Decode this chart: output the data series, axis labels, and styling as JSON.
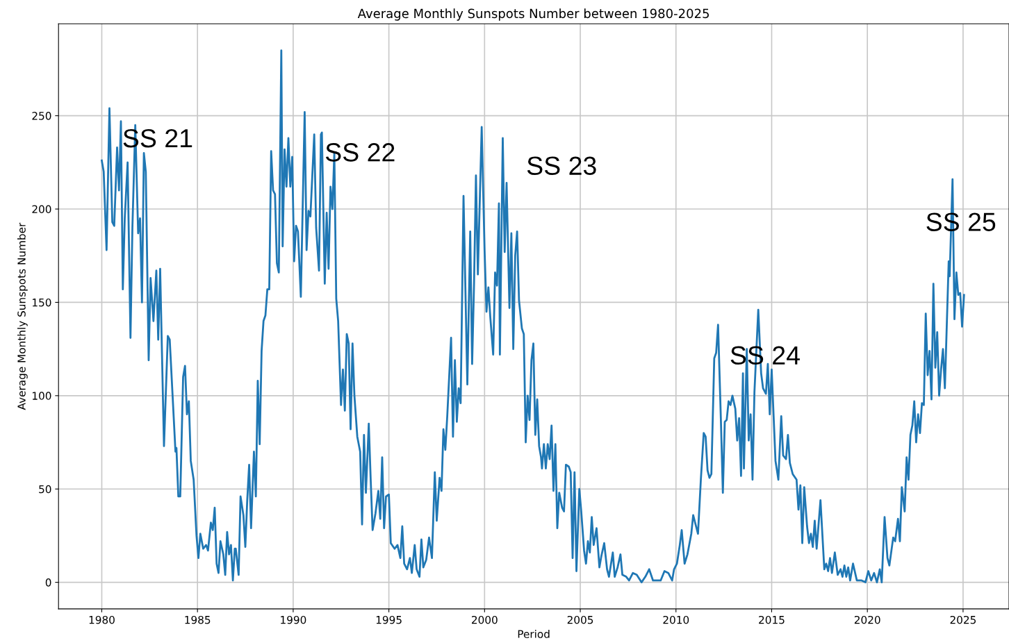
{
  "chart_data": {
    "type": "line",
    "title": "Average Monthly Sunspots Number between 1980-2025",
    "xlabel": "Period",
    "ylabel": "Average Monthly Sunspots Number",
    "xlim": [
      1977.74,
      2027.4
    ],
    "ylim": [
      -14.25,
      299.25
    ],
    "xticks": [
      1980,
      1985,
      1990,
      1995,
      2000,
      2005,
      2010,
      2015,
      2020,
      2025
    ],
    "yticks": [
      0,
      50,
      100,
      150,
      200,
      250
    ],
    "grid": true,
    "marker": "none",
    "line_style": "solid",
    "annotations": [
      "SS 21",
      "SS 22",
      "SS 23",
      "SS 24",
      "SS 25"
    ],
    "series": [
      {
        "color": "#1f77b4",
        "x": [
          1980.0,
          1980.1,
          1980.25,
          1980.4,
          1980.55,
          1980.65,
          1980.8,
          1980.9,
          1981.0,
          1981.1,
          1981.2,
          1981.35,
          1981.5,
          1981.6,
          1981.75,
          1981.9,
          1982.0,
          1982.1,
          1982.2,
          1982.3,
          1982.45,
          1982.55,
          1982.7,
          1982.85,
          1982.95,
          1983.05,
          1983.25,
          1983.45,
          1983.55,
          1983.7,
          1983.85,
          1983.9,
          1984.0,
          1984.1,
          1984.25,
          1984.35,
          1984.45,
          1984.55,
          1984.65,
          1984.8,
          1984.95,
          1985.05,
          1985.15,
          1985.3,
          1985.45,
          1985.55,
          1985.7,
          1985.8,
          1985.9,
          1986.0,
          1986.1,
          1986.2,
          1986.35,
          1986.45,
          1986.55,
          1986.65,
          1986.75,
          1986.85,
          1986.95,
          1987.0,
          1987.15,
          1987.25,
          1987.4,
          1987.5,
          1987.6,
          1987.7,
          1987.8,
          1987.95,
          1988.05,
          1988.15,
          1988.25,
          1988.35,
          1988.45,
          1988.55,
          1988.65,
          1988.75,
          1988.85,
          1988.95,
          1989.05,
          1989.15,
          1989.25,
          1989.38,
          1989.45,
          1989.55,
          1989.65,
          1989.75,
          1989.85,
          1989.95,
          1990.05,
          1990.15,
          1990.25,
          1990.4,
          1990.6,
          1990.7,
          1990.8,
          1990.9,
          1991.1,
          1991.2,
          1991.35,
          1991.45,
          1991.5,
          1991.65,
          1991.75,
          1991.85,
          1991.95,
          1992.05,
          1992.15,
          1992.25,
          1992.35,
          1992.5,
          1992.6,
          1992.7,
          1992.8,
          1992.9,
          1993.0,
          1993.1,
          1993.2,
          1993.35,
          1993.5,
          1993.6,
          1993.7,
          1993.8,
          1993.95,
          1994.05,
          1994.15,
          1994.3,
          1994.45,
          1994.55,
          1994.65,
          1994.75,
          1994.85,
          1995.0,
          1995.1,
          1995.3,
          1995.45,
          1995.6,
          1995.7,
          1995.8,
          1995.95,
          1996.1,
          1996.2,
          1996.35,
          1996.45,
          1996.6,
          1996.7,
          1996.8,
          1996.95,
          1997.1,
          1997.25,
          1997.4,
          1997.5,
          1997.65,
          1997.75,
          1997.85,
          1997.95,
          1998.05,
          1998.25,
          1998.35,
          1998.45,
          1998.55,
          1998.65,
          1998.75,
          1998.9,
          1999.1,
          1999.25,
          1999.35,
          1999.45,
          1999.55,
          1999.65,
          1999.85,
          2000.0,
          2000.1,
          2000.2,
          2000.3,
          2000.45,
          2000.55,
          2000.65,
          2000.75,
          2000.8,
          2000.95,
          2001.05,
          2001.15,
          2001.3,
          2001.4,
          2001.5,
          2001.6,
          2001.7,
          2001.8,
          2001.85,
          2001.95,
          2002.05,
          2002.15,
          2002.25,
          2002.35,
          2002.45,
          2002.55,
          2002.65,
          2002.75,
          2002.85,
          2002.95,
          2003.0,
          2003.1,
          2003.2,
          2003.3,
          2003.4,
          2003.5,
          2003.6,
          2003.7,
          2003.8,
          2003.9,
          2004.05,
          2004.15,
          2004.25,
          2004.4,
          2004.5,
          2004.6,
          2004.7,
          2004.8,
          2004.95,
          2005.05,
          2005.2,
          2005.3,
          2005.4,
          2005.5,
          2005.6,
          2005.7,
          2005.85,
          2006.0,
          2006.1,
          2006.25,
          2006.4,
          2006.5,
          2006.7,
          2006.8,
          2006.95,
          2007.1,
          2007.2,
          2007.4,
          2007.55,
          2007.75,
          2007.95,
          2008.2,
          2008.4,
          2008.6,
          2008.8,
          2009.0,
          2009.2,
          2009.4,
          2009.6,
          2009.8,
          2009.9,
          2010.05,
          2010.2,
          2010.3,
          2010.45,
          2010.6,
          2010.8,
          2010.9,
          2011.05,
          2011.15,
          2011.3,
          2011.45,
          2011.55,
          2011.65,
          2011.75,
          2011.85,
          2012.0,
          2012.1,
          2012.2,
          2012.35,
          2012.45,
          2012.55,
          2012.65,
          2012.75,
          2012.85,
          2012.95,
          2013.1,
          2013.2,
          2013.3,
          2013.4,
          2013.5,
          2013.55,
          2013.7,
          2013.8,
          2013.9,
          2014.0,
          2014.1,
          2014.15,
          2014.3,
          2014.45,
          2014.55,
          2014.7,
          2014.8,
          2014.9,
          2015.0,
          2015.2,
          2015.35,
          2015.5,
          2015.6,
          2015.75,
          2015.85,
          2015.95,
          2016.1,
          2016.3,
          2016.4,
          2016.5,
          2016.6,
          2016.7,
          2016.85,
          2016.95,
          2017.05,
          2017.15,
          2017.25,
          2017.35,
          2017.55,
          2017.75,
          2017.85,
          2017.95,
          2018.05,
          2018.15,
          2018.3,
          2018.45,
          2018.6,
          2018.7,
          2018.8,
          2018.9,
          2019.0,
          2019.1,
          2019.25,
          2019.45,
          2019.7,
          2019.9,
          2020.05,
          2020.2,
          2020.35,
          2020.5,
          2020.65,
          2020.75,
          2020.9,
          2021.05,
          2021.15,
          2021.35,
          2021.45,
          2021.6,
          2021.7,
          2021.8,
          2021.95,
          2022.05,
          2022.15,
          2022.25,
          2022.35,
          2022.45,
          2022.55,
          2022.65,
          2022.75,
          2022.85,
          2022.95,
          2023.05,
          2023.15,
          2023.25,
          2023.35,
          2023.45,
          2023.55,
          2023.65,
          2023.75,
          2023.85,
          2023.95,
          2024.05,
          2024.25,
          2024.3,
          2024.45,
          2024.55,
          2024.65,
          2024.75,
          2024.85,
          2024.95,
          2025.05
        ],
        "values": [
          226,
          220,
          178,
          254,
          193,
          191,
          233,
          210,
          247,
          157,
          195,
          225,
          131,
          190,
          245,
          187,
          195,
          150,
          230,
          220,
          119,
          163,
          140,
          167,
          130,
          168,
          73,
          132,
          130,
          100,
          70,
          72,
          46,
          46,
          110,
          116,
          90,
          97,
          65,
          55,
          25,
          13,
          26,
          18,
          20,
          17,
          32,
          28,
          40,
          10,
          5,
          22,
          15,
          4,
          27,
          15,
          20,
          1,
          18,
          18,
          4,
          46,
          36,
          19,
          44,
          63,
          29,
          70,
          46,
          108,
          74,
          124,
          140,
          143,
          157,
          157,
          231,
          210,
          208,
          171,
          166,
          285,
          180,
          232,
          212,
          238,
          212,
          228,
          172,
          191,
          188,
          153,
          252,
          178,
          199,
          196,
          240,
          190,
          167,
          240,
          241,
          160,
          198,
          168,
          212,
          200,
          230,
          152,
          140,
          95,
          114,
          92,
          133,
          128,
          82,
          128,
          100,
          78,
          70,
          31,
          79,
          48,
          85,
          55,
          28,
          37,
          49,
          34,
          67,
          29,
          46,
          47,
          21,
          18,
          20,
          13,
          30,
          10,
          7,
          13,
          5,
          20,
          7,
          3,
          23,
          8,
          12,
          24,
          13,
          59,
          33,
          56,
          49,
          82,
          71,
          89,
          131,
          78,
          119,
          86,
          104,
          96,
          207,
          106,
          188,
          117,
          160,
          218,
          165,
          244,
          178,
          145,
          158,
          142,
          122,
          166,
          159,
          203,
          122,
          238,
          177,
          214,
          147,
          187,
          125,
          175,
          188,
          151,
          146,
          136,
          133,
          75,
          100,
          87,
          119,
          128,
          79,
          98,
          73,
          67,
          61,
          74,
          61,
          74,
          66,
          84,
          49,
          74,
          29,
          48,
          40,
          38,
          63,
          62,
          59,
          13,
          59,
          6,
          50,
          38,
          17,
          10,
          22,
          16,
          35,
          20,
          29,
          8,
          14,
          21,
          7,
          3,
          16,
          3,
          8,
          15,
          4,
          3,
          1,
          5,
          4,
          0,
          3,
          7,
          1,
          1,
          1,
          6,
          5,
          1,
          7,
          10,
          20,
          28,
          10,
          15,
          26,
          36,
          30,
          26,
          55,
          80,
          78,
          60,
          56,
          58,
          120,
          123,
          138,
          86,
          48,
          86,
          87,
          97,
          95,
          100,
          93,
          76,
          88,
          57,
          112,
          61,
          125,
          76,
          90,
          55,
          102,
          113,
          146,
          112,
          104,
          101,
          117,
          90,
          114,
          65,
          55,
          89,
          68,
          66,
          79,
          64,
          58,
          55,
          39,
          52,
          21,
          51,
          30,
          21,
          26,
          19,
          33,
          18,
          44,
          7,
          10,
          6,
          13,
          5,
          16,
          4,
          7,
          3,
          9,
          3,
          8,
          1,
          10,
          1,
          1,
          0,
          6,
          1,
          5,
          0,
          7,
          0,
          35,
          13,
          9,
          24,
          22,
          34,
          22,
          51,
          38,
          67,
          55,
          79,
          84,
          97,
          75,
          90,
          80,
          96,
          95,
          144,
          111,
          124,
          98,
          160,
          115,
          134,
          100,
          114,
          125,
          104,
          172,
          164,
          216,
          141,
          166,
          154,
          155,
          137,
          154
        ]
      }
    ]
  }
}
